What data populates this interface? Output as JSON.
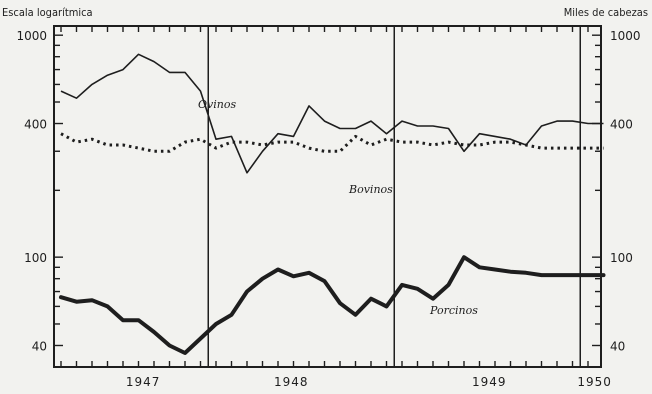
{
  "chart_data": {
    "type": "line",
    "y_scale": "log",
    "ylim": [
      32,
      1100
    ],
    "y_ticks": [
      1000,
      400,
      100,
      40
    ],
    "y_tick_labels_left": [
      "1000",
      "400",
      "100",
      "40"
    ],
    "y_tick_labels_right": [
      "1000",
      "400",
      "100",
      "40"
    ],
    "left_axis_title": "Escala logarítmica",
    "right_axis_title": "Miles de cabezas",
    "years": [
      "1947",
      "1948",
      "1949",
      "1950"
    ],
    "x_start": "1947-03",
    "grid": false,
    "series": [
      {
        "name": "Ovinos",
        "style": "thin-solid",
        "x": [
          "1947-03",
          "1947-04",
          "1947-05",
          "1947-06",
          "1947-07",
          "1947-08",
          "1947-09",
          "1947-10",
          "1947-11",
          "1947-12",
          "1948-01",
          "1948-02",
          "1948-03",
          "1948-04",
          "1948-05",
          "1948-06",
          "1948-07",
          "1948-08",
          "1948-09",
          "1948-10",
          "1948-11",
          "1948-12",
          "1949-01",
          "1949-02",
          "1949-03",
          "1949-04",
          "1949-05",
          "1949-06",
          "1949-07",
          "1949-08",
          "1949-09",
          "1949-10",
          "1949-11",
          "1949-12",
          "1950-01",
          "1950-02"
        ],
        "values": [
          560,
          520,
          600,
          660,
          700,
          820,
          760,
          680,
          680,
          560,
          340,
          350,
          240,
          300,
          360,
          350,
          480,
          410,
          380,
          380,
          410,
          360,
          410,
          390,
          390,
          380,
          300,
          360,
          350,
          340,
          320,
          390,
          410,
          410,
          400,
          400
        ]
      },
      {
        "name": "Bovinos",
        "style": "dotted",
        "x": [
          "1947-03",
          "1947-04",
          "1947-05",
          "1947-06",
          "1947-07",
          "1947-08",
          "1947-09",
          "1947-10",
          "1947-11",
          "1947-12",
          "1948-01",
          "1948-02",
          "1948-03",
          "1948-04",
          "1948-05",
          "1948-06",
          "1948-07",
          "1948-08",
          "1948-09",
          "1948-10",
          "1948-11",
          "1948-12",
          "1949-01",
          "1949-02",
          "1949-03",
          "1949-04",
          "1949-05",
          "1949-06",
          "1949-07",
          "1949-08",
          "1949-09",
          "1949-10",
          "1949-11",
          "1949-12",
          "1950-01",
          "1950-02"
        ],
        "values": [
          360,
          330,
          340,
          320,
          320,
          310,
          300,
          300,
          330,
          340,
          310,
          330,
          330,
          320,
          330,
          330,
          310,
          300,
          300,
          350,
          320,
          340,
          330,
          330,
          320,
          330,
          320,
          320,
          330,
          330,
          320,
          310,
          310,
          310,
          310,
          310
        ]
      },
      {
        "name": "Porcinos",
        "style": "thick-solid",
        "x": [
          "1947-03",
          "1947-04",
          "1947-05",
          "1947-06",
          "1947-07",
          "1947-08",
          "1947-09",
          "1947-10",
          "1947-11",
          "1947-12",
          "1948-01",
          "1948-02",
          "1948-03",
          "1948-04",
          "1948-05",
          "1948-06",
          "1948-07",
          "1948-08",
          "1948-09",
          "1948-10",
          "1948-11",
          "1948-12",
          "1949-01",
          "1949-02",
          "1949-03",
          "1949-04",
          "1949-05",
          "1949-06",
          "1949-07",
          "1949-08",
          "1949-09",
          "1949-10",
          "1949-11",
          "1949-12",
          "1950-01",
          "1950-02"
        ],
        "values": [
          66,
          63,
          64,
          60,
          52,
          52,
          46,
          40,
          37,
          43,
          50,
          55,
          70,
          80,
          88,
          82,
          85,
          78,
          62,
          55,
          65,
          60,
          75,
          72,
          65,
          75,
          100,
          90,
          88,
          86,
          85,
          83,
          83,
          83,
          83,
          83
        ]
      }
    ],
    "vertical_dividers": [
      "1947-12",
      "1948-12",
      "1949-12"
    ]
  },
  "colors": {
    "ink": "#1e1e1e",
    "background": "#f2f2ef"
  }
}
